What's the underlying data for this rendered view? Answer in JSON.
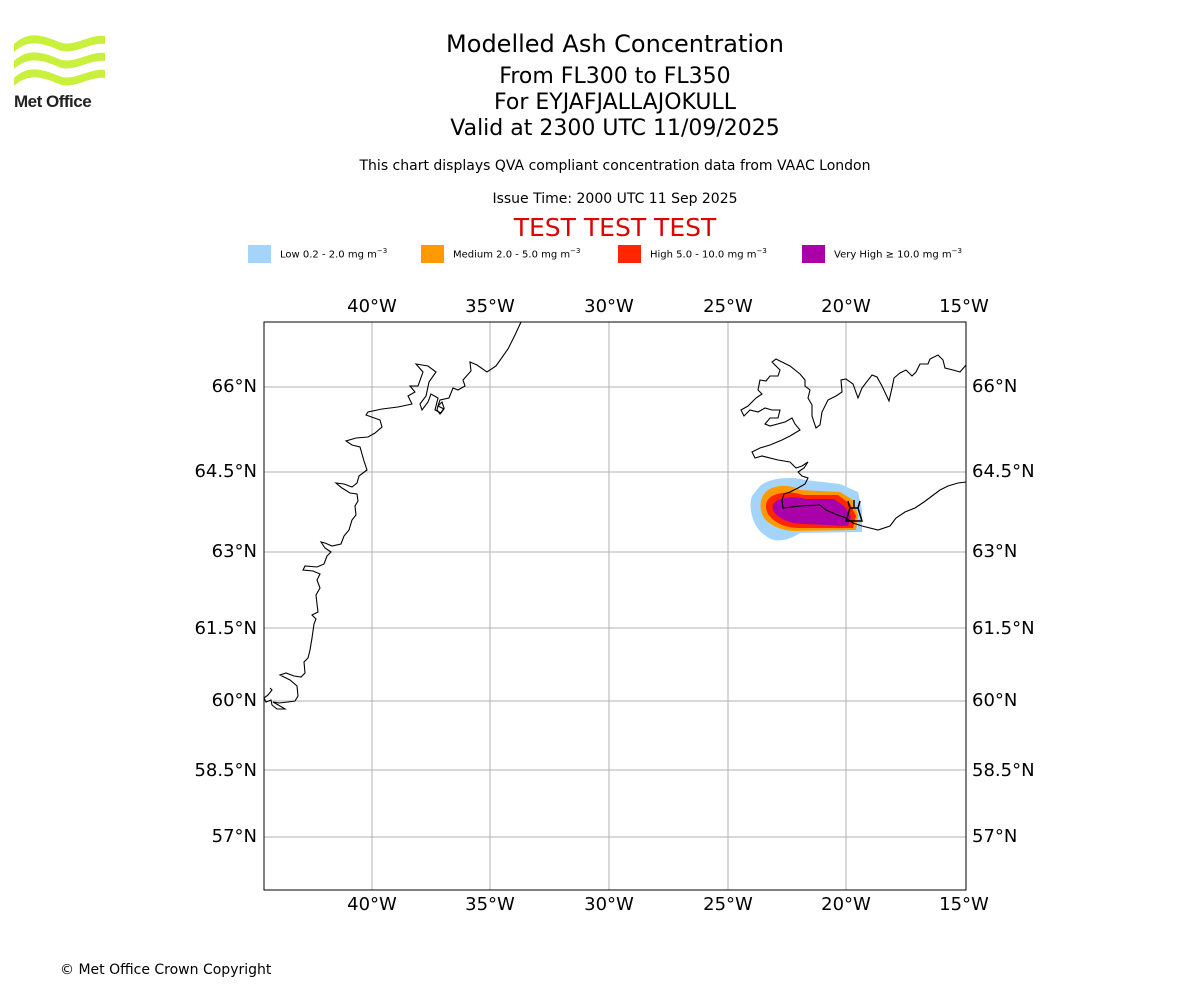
{
  "header": {
    "title": "Modelled Ash Concentration",
    "flight_levels": "From FL300 to FL350",
    "volcano": "For EYJAFJALLAJOKULL",
    "valid_time": "Valid at 2300 UTC 11/09/2025",
    "subtitle": "This chart displays QVA compliant concentration data from VAAC London",
    "issue_time": "Issue Time: 2000 UTC 11 Sep 2025",
    "banner": "TEST TEST TEST"
  },
  "logo": {
    "text": "Met Office",
    "color": "#c8f03c"
  },
  "legend": [
    {
      "label": "Low 0.2 - 2.0 mg m",
      "exp": "−3",
      "color": "#a5d4fb"
    },
    {
      "label": "Medium 2.0 - 5.0 mg m",
      "exp": "−3",
      "color": "#ff9900"
    },
    {
      "label": "High 5.0 - 10.0 mg m",
      "exp": "−3",
      "color": "#ff2600"
    },
    {
      "label": "Very High  ≥  10.0 mg m",
      "exp": "−3",
      "color": "#aa00aa"
    }
  ],
  "map": {
    "lon_ticks": [
      "40°W",
      "35°W",
      "30°W",
      "25°W",
      "20°W",
      "15°W"
    ],
    "lat_ticks": [
      "66°N",
      "64.5°N",
      "63°N",
      "61.5°N",
      "60°N",
      "58.5°N",
      "57°N"
    ],
    "volcano_icon": "volcano-icon",
    "gridline_color": "#b0b0b0",
    "coastline_color": "#000000"
  },
  "footer": {
    "copyright": "© Met Office Crown Copyright"
  }
}
